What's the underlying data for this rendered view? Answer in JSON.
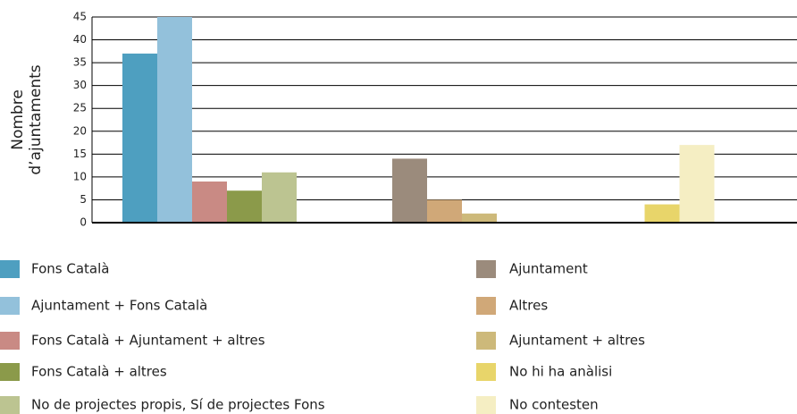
{
  "chart_data": {
    "type": "bar",
    "y_label": [
      "Nombre",
      "d’ajuntaments"
    ],
    "categories": [
      null,
      null,
      null
    ],
    "series": [
      {
        "name": "Fons Català",
        "color": "#4e9fc0",
        "values": [
          37,
          null,
          null
        ]
      },
      {
        "name": "Ajuntament + Fons Català",
        "color": "#93c1db",
        "values": [
          45,
          null,
          null
        ]
      },
      {
        "name": "Fons Català + Ajuntament + altres",
        "color": "#c98a84",
        "values": [
          9,
          null,
          null
        ]
      },
      {
        "name": "Fons Català + altres",
        "color": "#8b9a4a",
        "values": [
          7,
          null,
          null
        ]
      },
      {
        "name": "No de projectes propis, Sí de projectes Fons",
        "color": "#bcc491",
        "values": [
          11,
          null,
          null
        ]
      },
      {
        "name": "Ajuntament",
        "color": "#9b8b7c",
        "values": [
          null,
          14,
          null
        ]
      },
      {
        "name": "Altres",
        "color": "#d0a878",
        "values": [
          null,
          5,
          null
        ]
      },
      {
        "name": "Ajuntament + altres",
        "color": "#cdb97a",
        "values": [
          null,
          2,
          null
        ]
      },
      {
        "name": "No hi ha anàlisi",
        "color": "#e8d56a",
        "values": [
          null,
          null,
          4
        ]
      },
      {
        "name": "No contesten",
        "color": "#f5eec3",
        "values": [
          null,
          null,
          17
        ]
      }
    ],
    "ylim": [
      0,
      45
    ],
    "yticks": [
      0,
      5,
      10,
      15,
      20,
      25,
      30,
      35,
      40,
      45
    ],
    "grid": true
  }
}
